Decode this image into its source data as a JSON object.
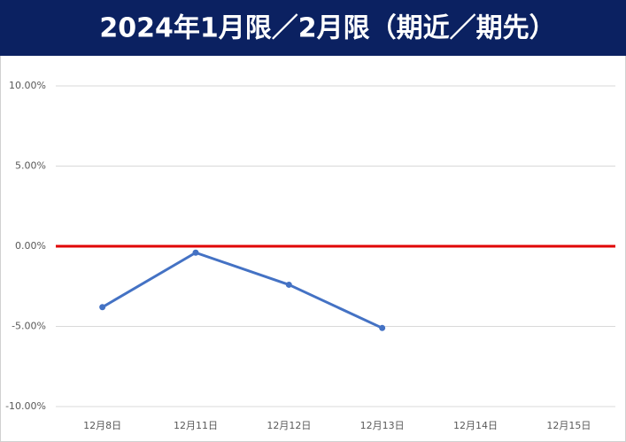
{
  "chart_data": {
    "type": "line",
    "title": "2024年1月限／2月限（期近／期先）",
    "categories": [
      "12月8日",
      "12月11日",
      "12月12日",
      "12月13日",
      "12月14日",
      "12月15日"
    ],
    "series": [
      {
        "color": "#4472c4",
        "values": [
          -3.8,
          -0.4,
          -2.4,
          -5.1,
          null,
          null
        ]
      }
    ],
    "ylim": [
      -10,
      10
    ],
    "yticks": [
      {
        "value": -10,
        "label": "-10.00%"
      },
      {
        "value": -5,
        "label": "-5.00%"
      },
      {
        "value": 0,
        "label": "0.00%"
      },
      {
        "value": 5,
        "label": "5.00%"
      },
      {
        "value": 10,
        "label": "10.00%"
      }
    ],
    "grid": true,
    "reference_line": {
      "value": 0,
      "color": "#e00000"
    }
  }
}
